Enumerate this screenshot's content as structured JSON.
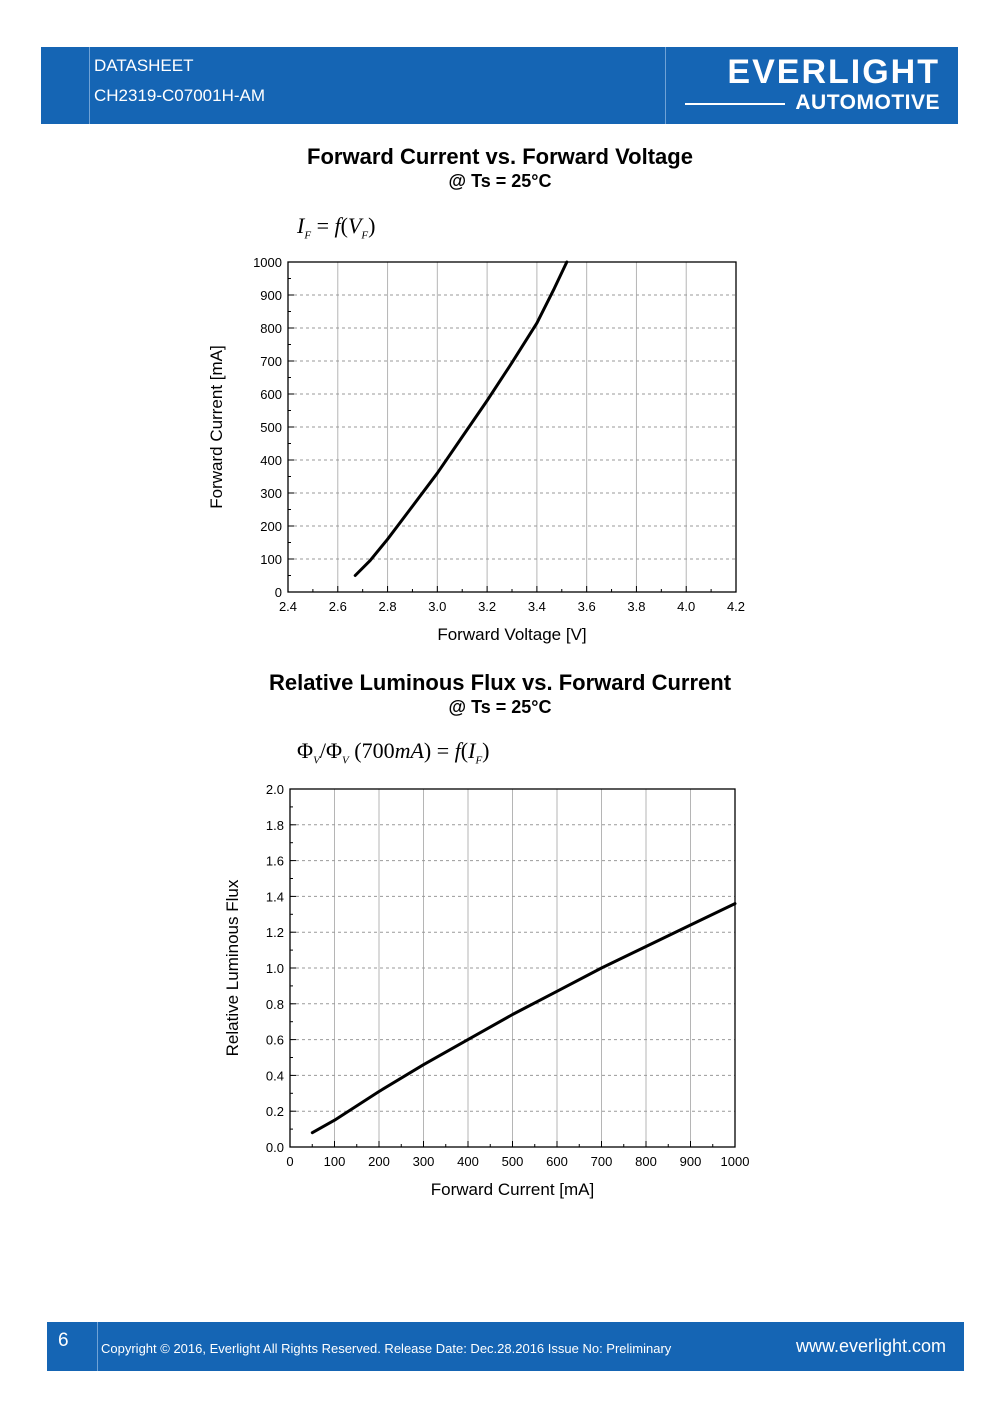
{
  "header": {
    "doc_type": "DATASHEET",
    "part_number": "CH2319-C07001H-AM",
    "brand": "EVERLIGHT",
    "brand_sub": "AUTOMOTIVE"
  },
  "footer": {
    "page_number": "6",
    "copyright": "Copyright © 2016, Everlight All Rights Reserved. Release Date: Dec.28.2016 Issue No: Preliminary",
    "website": "www.everlight.com"
  },
  "chart_data": [
    {
      "type": "line",
      "title": "Forward Current vs. Forward Voltage",
      "subtitle": "@ Ts = 25°C",
      "formula": "I_F = f(V_F)",
      "xlabel": "Forward Voltage [V]",
      "ylabel": "Forward Current [mA]",
      "xlim": [
        2.4,
        4.2
      ],
      "ylim": [
        0,
        1000
      ],
      "xticks": [
        "2.4",
        "2.6",
        "2.8",
        "3.0",
        "3.2",
        "3.4",
        "3.6",
        "3.8",
        "4.0",
        "4.2"
      ],
      "yticks": [
        "0",
        "100",
        "200",
        "300",
        "400",
        "500",
        "600",
        "700",
        "800",
        "900",
        "1000"
      ],
      "grid": true,
      "series": [
        {
          "x": [
            2.67,
            2.73,
            2.8,
            2.89,
            3.0,
            3.1,
            3.2,
            3.3,
            3.4,
            3.47,
            3.52
          ],
          "y": [
            50,
            95,
            160,
            250,
            360,
            470,
            580,
            695,
            815,
            920,
            1000
          ]
        }
      ]
    },
    {
      "type": "line",
      "title": "Relative Luminous Flux vs. Forward Current",
      "subtitle": "@ Ts = 25°C",
      "formula": "Φ_V/Φ_V(700mA) = f(I_F)",
      "xlabel": "Forward Current [mA]",
      "ylabel": "Relative Luminous Flux",
      "xlim": [
        0,
        1000
      ],
      "ylim": [
        0.0,
        2.0
      ],
      "xticks": [
        "0",
        "100",
        "200",
        "300",
        "400",
        "500",
        "600",
        "700",
        "800",
        "900",
        "1000"
      ],
      "yticks": [
        "0.0",
        "0.2",
        "0.4",
        "0.6",
        "0.8",
        "1.0",
        "1.2",
        "1.4",
        "1.6",
        "1.8",
        "2.0"
      ],
      "grid": true,
      "series": [
        {
          "x": [
            50,
            100,
            200,
            300,
            400,
            500,
            600,
            700,
            800,
            900,
            1000
          ],
          "y": [
            0.08,
            0.15,
            0.31,
            0.46,
            0.6,
            0.74,
            0.87,
            1.0,
            1.12,
            1.24,
            1.36
          ]
        }
      ]
    }
  ]
}
